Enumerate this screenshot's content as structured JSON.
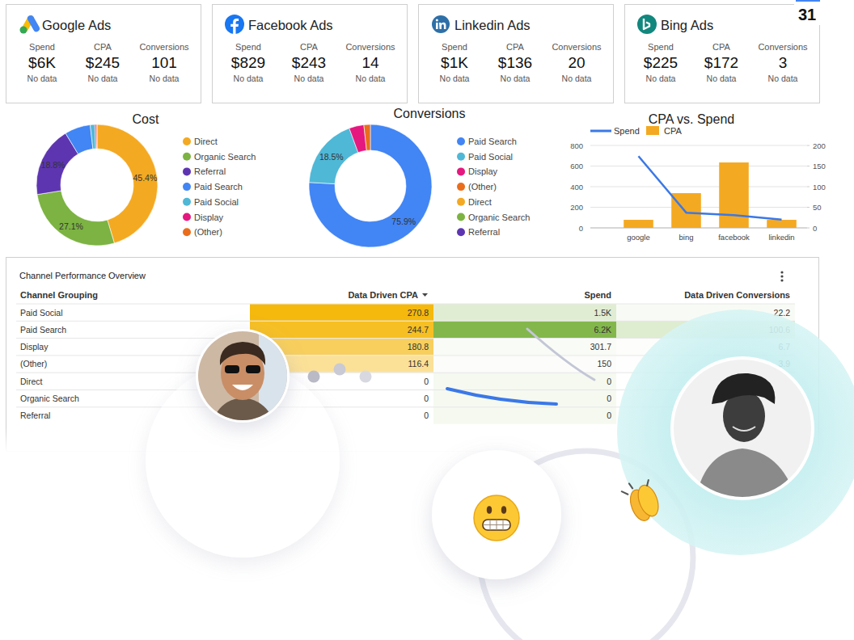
{
  "badge": "31",
  "cards": [
    {
      "title": "Google Ads",
      "metrics": [
        {
          "label": "Spend",
          "value": "$6K",
          "note": "No data"
        },
        {
          "label": "CPA",
          "value": "$245",
          "note": "No data"
        },
        {
          "label": "Conversions",
          "value": "101",
          "note": "No data"
        }
      ]
    },
    {
      "title": "Facebook Ads",
      "metrics": [
        {
          "label": "Spend",
          "value": "$829",
          "note": "No data"
        },
        {
          "label": "CPA",
          "value": "$243",
          "note": "No data"
        },
        {
          "label": "Conversions",
          "value": "14",
          "note": "No data"
        }
      ]
    },
    {
      "title": "Linkedin Ads",
      "metrics": [
        {
          "label": "Spend",
          "value": "$1K",
          "note": "No data"
        },
        {
          "label": "CPA",
          "value": "$136",
          "note": "No data"
        },
        {
          "label": "Conversions",
          "value": "20",
          "note": "No data"
        }
      ]
    },
    {
      "title": "Bing Ads",
      "metrics": [
        {
          "label": "Spend",
          "value": "$225",
          "note": "No data"
        },
        {
          "label": "CPA",
          "value": "$172",
          "note": "No data"
        },
        {
          "label": "Conversions",
          "value": "3",
          "note": "No data"
        }
      ]
    }
  ],
  "chart_data": [
    {
      "type": "pie",
      "title": "Cost",
      "categories": [
        "Direct",
        "Organic Search",
        "Referral",
        "Paid Search",
        "Paid Social",
        "Display",
        "(Other)"
      ],
      "values": [
        45.4,
        27.1,
        18.8,
        6.9,
        1.2,
        0.4,
        0.2
      ],
      "value_labels": [
        "45.4%",
        "27.1%",
        "18.8%",
        null,
        null,
        null,
        null
      ],
      "colors": [
        "#f4a922",
        "#7cb342",
        "#5e35b1",
        "#4285f4",
        "#4fb8d6",
        "#e5187f",
        "#ea6d1c"
      ],
      "data_labels": true,
      "legend": "right"
    },
    {
      "type": "pie",
      "title": "Conversions",
      "categories": [
        "Paid Search",
        "Paid Social",
        "Display",
        "(Other)",
        "Direct",
        "Organic Search",
        "Referral"
      ],
      "values": [
        75.9,
        18.5,
        3.9,
        1.7,
        0,
        0,
        0
      ],
      "value_labels": [
        "75.9%",
        "18.5%",
        null,
        null,
        null,
        null,
        null
      ],
      "colors": [
        "#4285f4",
        "#4fb8d6",
        "#e5187f",
        "#ea6d1c",
        "#f4a922",
        "#7cb342",
        "#5e35b1"
      ],
      "data_labels": true,
      "legend": "right"
    },
    {
      "type": "bar",
      "title": "CPA vs. Spend",
      "categories": [
        "google",
        "bing",
        "facebook",
        "linkedin"
      ],
      "series": [
        {
          "name": "Spend",
          "type": "line",
          "axis": "y2",
          "color": "#3b78e7",
          "values": [
            174,
            37,
            31,
            20
          ]
        },
        {
          "name": "CPA",
          "type": "bar",
          "color": "#f4a922",
          "values": [
            78,
            337,
            635,
            78
          ]
        }
      ],
      "ylim": [
        0,
        800
      ],
      "yticks": [
        0,
        200,
        400,
        600,
        800
      ],
      "y2lim": [
        0,
        200
      ],
      "y2ticks": [
        0,
        50,
        100,
        150,
        200
      ],
      "grid": true,
      "legend": "top"
    }
  ],
  "table": {
    "title": "Channel Performance Overview",
    "columns": [
      "Channel Grouping",
      "Data Driven CPA",
      "Spend",
      "Data Driven Conversions"
    ],
    "rows": [
      [
        "Paid Social",
        "270.8",
        "1.5K",
        "22.2"
      ],
      [
        "Paid Search",
        "244.7",
        "6.2K",
        "100.6"
      ],
      [
        "Display",
        "180.8",
        "301.7",
        "6.7"
      ],
      [
        "(Other)",
        "116.4",
        "150",
        "3.9"
      ],
      [
        "Direct",
        "0",
        "0",
        null
      ],
      [
        "Organic Search",
        "0",
        "0",
        null
      ],
      [
        "Referral",
        "0",
        "0",
        null
      ]
    ]
  }
}
